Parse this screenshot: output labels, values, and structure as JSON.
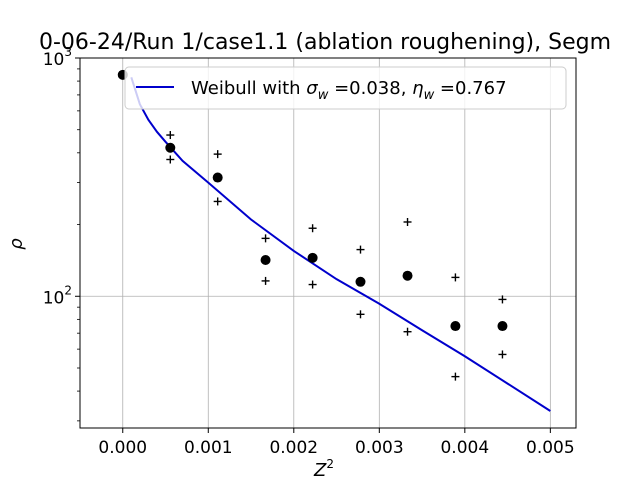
{
  "chart_data": {
    "type": "scatter",
    "title": "0-06-24/Run 1/case1.1 (ablation roughening), Segm",
    "xlabel": "Z",
    "xlabel_sup": "2",
    "ylabel": "ρ",
    "xlim": [
      -0.0005,
      0.0053
    ],
    "ylim": [
      28,
      1000
    ],
    "yscale": "log",
    "grid": true,
    "x_ticks": [
      0.0,
      0.001,
      0.002,
      0.003,
      0.004,
      0.005
    ],
    "x_tick_labels": [
      "0.000",
      "0.001",
      "0.002",
      "0.003",
      "0.004",
      "0.005"
    ],
    "y_ticks": [
      100,
      1000
    ],
    "y_tick_labels": [
      {
        "base": "10",
        "exp": "2"
      },
      {
        "base": "10",
        "exp": "3"
      }
    ],
    "legend": {
      "placement": "top-right",
      "prefix": "Weibull with ",
      "sigma_sym": "σ",
      "sigma_sub": "w",
      "sigma_val": " =0.038, ",
      "eta_sym": "η",
      "eta_sub": "w",
      "eta_val": " =0.767"
    },
    "series": [
      {
        "kind": "points",
        "marker": "circle",
        "color": "#000000",
        "x": [
          0.0,
          0.000556,
          0.00111,
          0.00167,
          0.00222,
          0.00278,
          0.00333,
          0.00389,
          0.00444
        ],
        "y": [
          850,
          420,
          315,
          142,
          145,
          115,
          122,
          75,
          75
        ]
      },
      {
        "kind": "upper-bound",
        "marker": "plus",
        "color": "#000000",
        "x": [
          0.000556,
          0.00111,
          0.00167,
          0.00222,
          0.00278,
          0.00333,
          0.00389,
          0.00444
        ],
        "y": [
          475,
          395,
          175,
          193,
          157,
          205,
          120,
          97
        ]
      },
      {
        "kind": "lower-bound",
        "marker": "plus",
        "color": "#000000",
        "x": [
          0.000556,
          0.00111,
          0.00167,
          0.00222,
          0.00278,
          0.00333,
          0.00389,
          0.00444
        ],
        "y": [
          375,
          250,
          116,
          112,
          84,
          71,
          46,
          57
        ]
      },
      {
        "kind": "fit-line",
        "name": "Weibull with σw =0.038, ηw =0.767",
        "color": "#0000cc",
        "x": [
          0.0001,
          0.0002,
          0.0003,
          0.0004,
          0.0005,
          0.0007,
          0.001,
          0.0015,
          0.002,
          0.0025,
          0.003,
          0.0035,
          0.004,
          0.0045,
          0.005
        ],
        "y": [
          830,
          640,
          550,
          490,
          445,
          370,
          300,
          210,
          155,
          118,
          93,
          72,
          56,
          43,
          33
        ]
      }
    ]
  }
}
